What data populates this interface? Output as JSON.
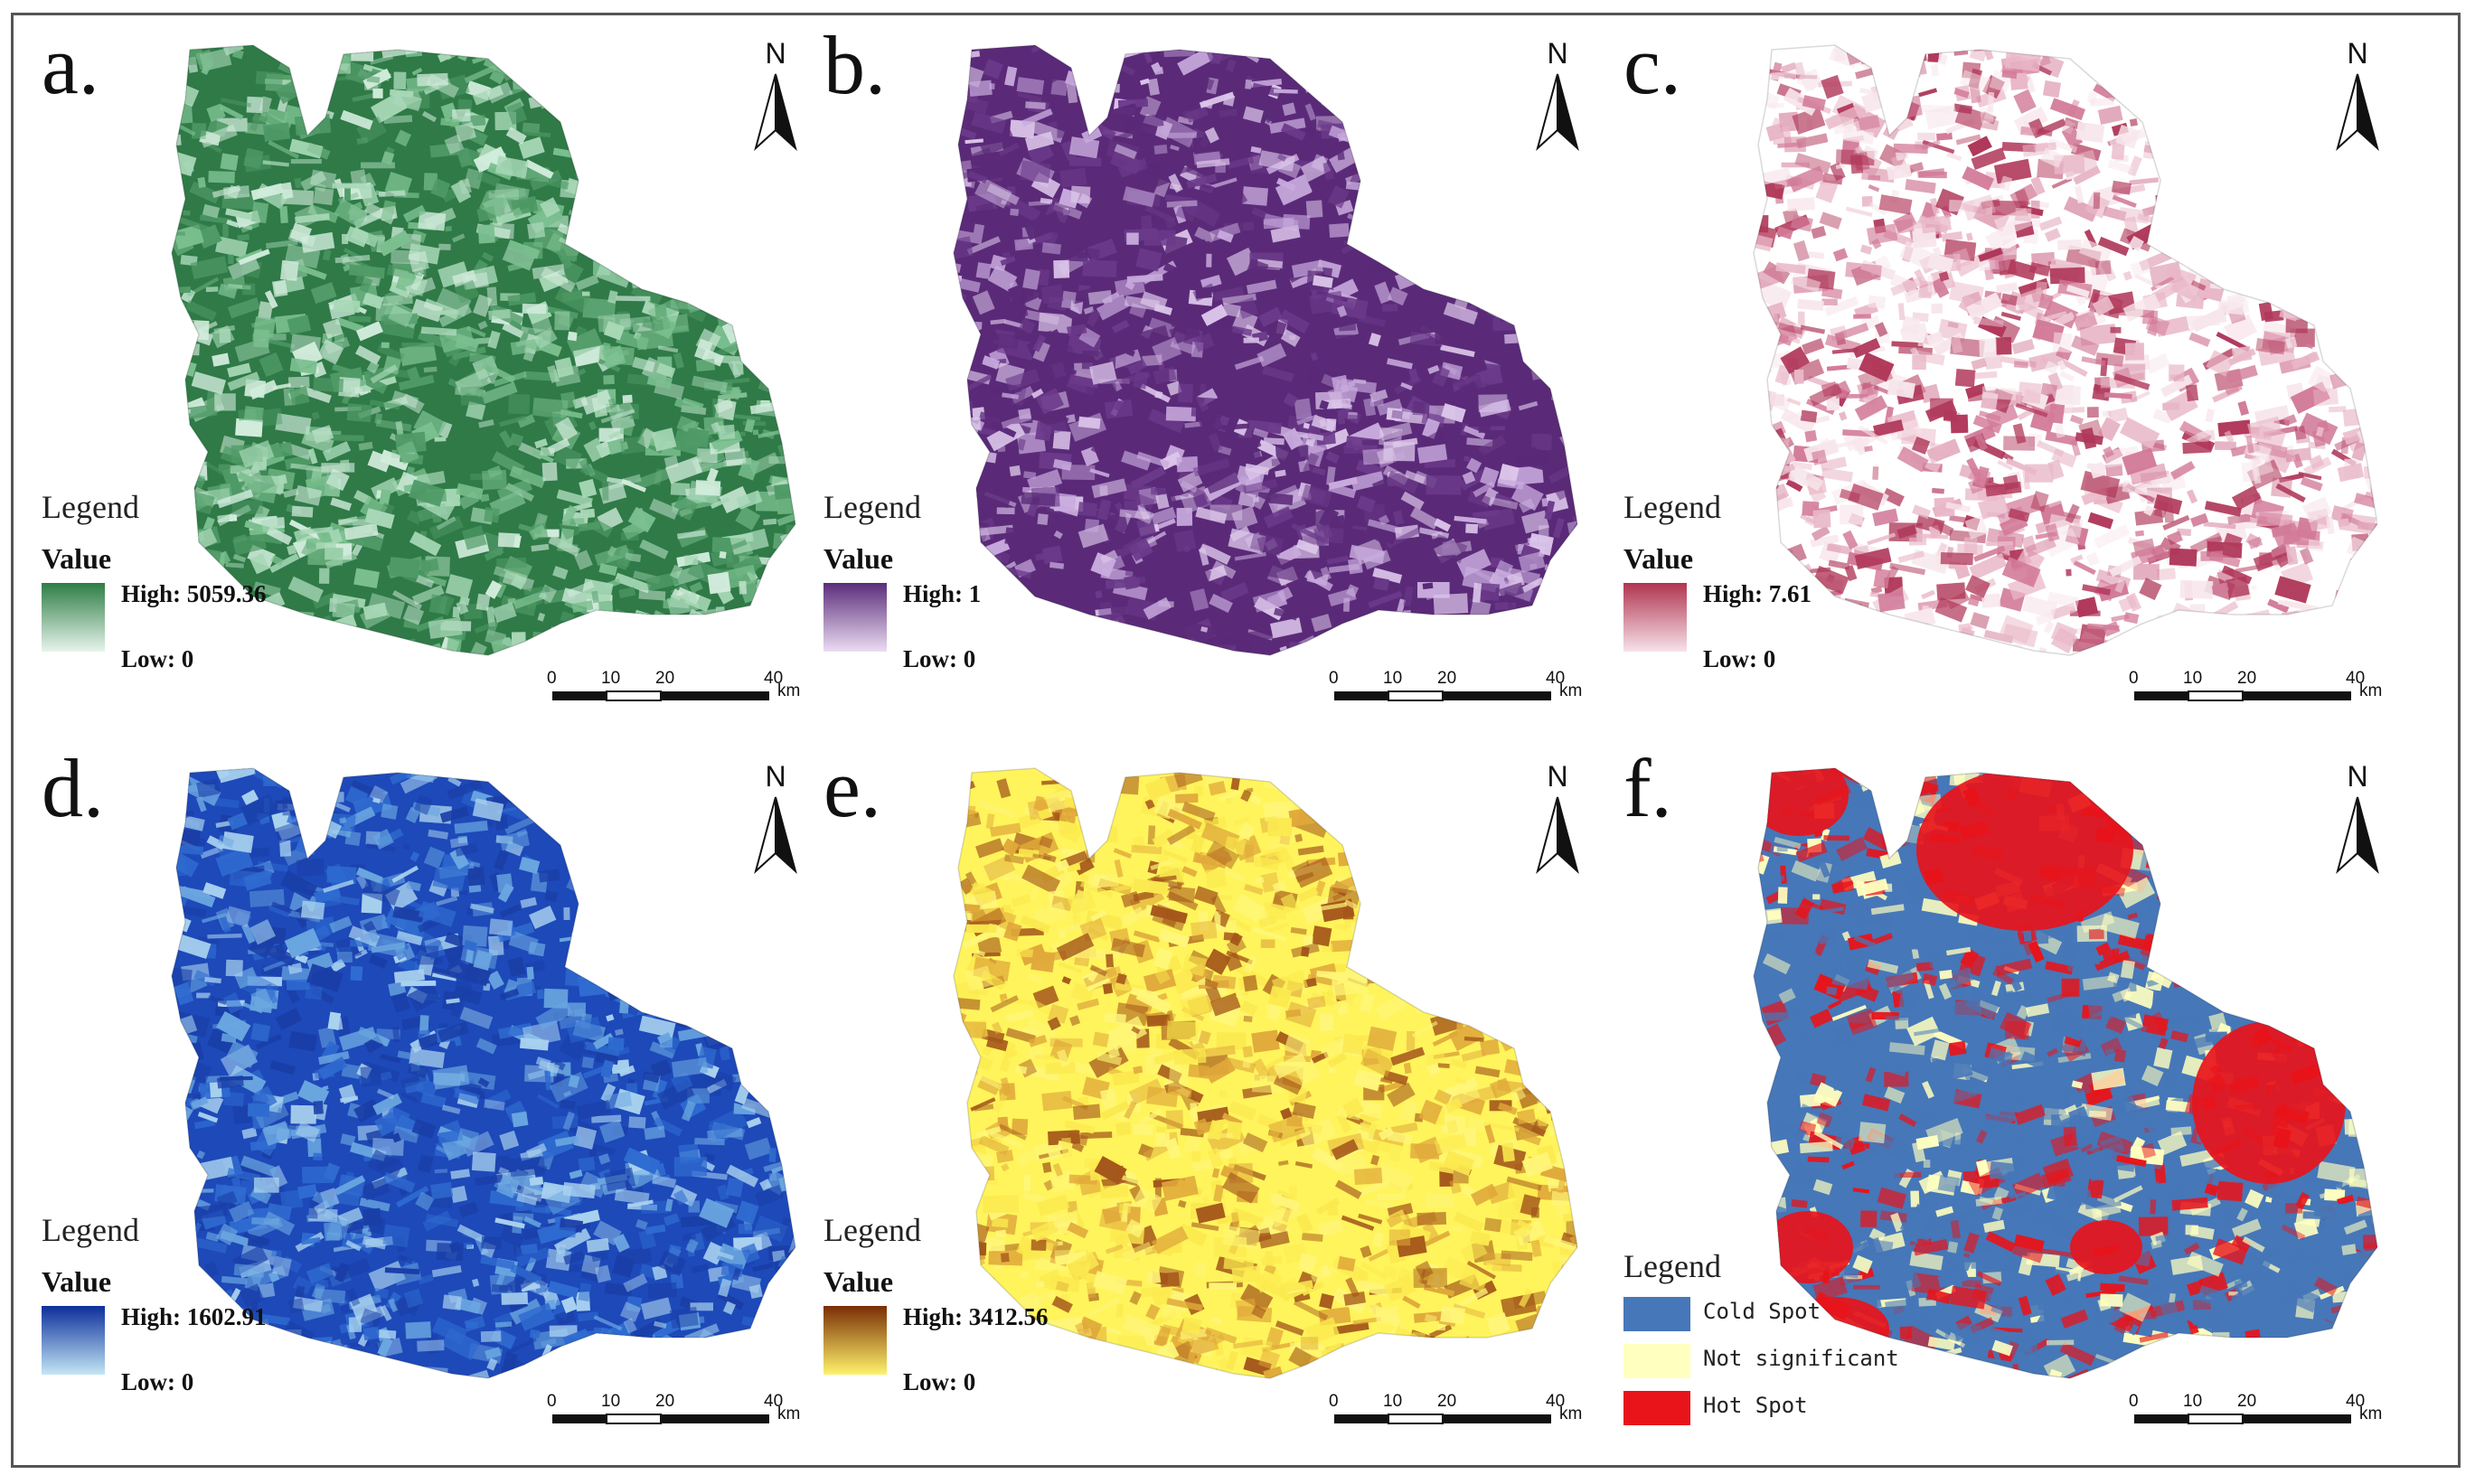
{
  "figure": {
    "panels": [
      {
        "id": "a",
        "label": "a.",
        "legend_title": "Legend",
        "value_title": "Value",
        "high": "High: 5059.36",
        "low": "Low: 0",
        "color_high": "#2e7d46",
        "color_low": "#e7f4ec",
        "palette": [
          "#2f7a47",
          "#4f9a66",
          "#7bbf8f",
          "#a8d8b7",
          "#d2ecdc"
        ]
      },
      {
        "id": "b",
        "label": "b.",
        "legend_title": "Legend",
        "value_title": "Value",
        "high": "High: 1",
        "low": "Low: 0",
        "color_high": "#5b2d7a",
        "color_low": "#ecdcf3",
        "palette": [
          "#5a2a78",
          "#6b3a8a",
          "#5a2a78",
          "#dcc6ea",
          "#c8aadd"
        ]
      },
      {
        "id": "c",
        "label": "c.",
        "legend_title": "Legend",
        "value_title": "Value",
        "high": "High: 7.61",
        "low": "Low: 0",
        "color_high": "#b0354f",
        "color_low": "#f7e2ea",
        "palette": [
          "#ffffff",
          "#f7e6ec",
          "#e9b8c8",
          "#d27a98",
          "#b0385a"
        ]
      },
      {
        "id": "d",
        "label": "d.",
        "legend_title": "Legend",
        "value_title": "Value",
        "high": "High: 1602.91",
        "low": "Low: 0",
        "color_high": "#0c2f9c",
        "color_low": "#c4e6f5",
        "palette": [
          "#1d49b9",
          "#2f6bd0",
          "#1a3ea6",
          "#6aa6e0",
          "#a9d2ef"
        ]
      },
      {
        "id": "e",
        "label": "e.",
        "legend_title": "Legend",
        "value_title": "Value",
        "high": "High: 3412.56",
        "low": "Low: 0",
        "color_high": "#7a2e05",
        "color_low": "#fff36b",
        "palette": [
          "#fff45c",
          "#fbe94f",
          "#fff67a",
          "#e0a83a",
          "#a4561a"
        ]
      },
      {
        "id": "f",
        "label": "f.",
        "legend_title": "Legend",
        "categories": [
          {
            "name": "Cold Spot",
            "color": "#4677b8"
          },
          {
            "name": "Not significant",
            "color": "#ffffbf"
          },
          {
            "name": "Hot Spot",
            "color": "#e8141a"
          }
        ],
        "palette": [
          "#4677b8",
          "#4677b8",
          "#ffffbf",
          "#4677b8",
          "#e8141a"
        ]
      }
    ],
    "north_label": "N",
    "scale": {
      "ticks": [
        "0",
        "10",
        "20",
        "40"
      ],
      "unit": "km"
    }
  }
}
